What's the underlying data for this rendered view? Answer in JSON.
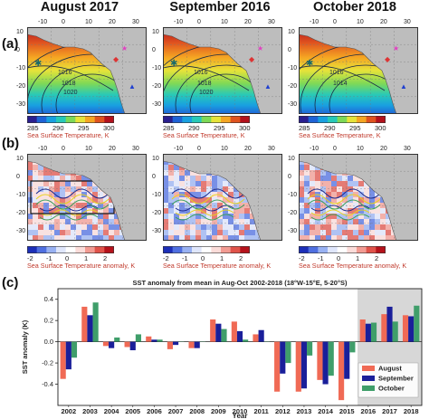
{
  "column_titles": [
    "August 2017",
    "September 2016",
    "October 2018"
  ],
  "panel_letters": {
    "a": "(a)",
    "b": "(b)",
    "c": "(c)"
  },
  "map_lon_ticks": [
    "-10",
    "0",
    "10",
    "20",
    "30"
  ],
  "map_lat_ticks": [
    "10",
    "0",
    "-10",
    "-20",
    "-30"
  ],
  "isobar_labels": {
    "aug": [
      "1016",
      "1018",
      "1020"
    ],
    "sep": [
      "1016",
      "1018",
      "1020"
    ],
    "oct": [
      "1016",
      "1014"
    ]
  },
  "colorbar_a": {
    "label": "Sea Surface Temperature, K",
    "ticks": [
      "285",
      "290",
      "295",
      "300"
    ],
    "colors": [
      "#2a1f8f",
      "#1f63d6",
      "#19a0e0",
      "#28c9b8",
      "#7ed957",
      "#e6e33a",
      "#f5a623",
      "#e0531f",
      "#b3111c"
    ]
  },
  "colorbar_b": {
    "label": "Sea Surface Temperature anomaly, K",
    "ticks": [
      "-2",
      "-1",
      "0",
      "1",
      "2"
    ],
    "colors": [
      "#1c2fb8",
      "#4f6fe0",
      "#98b1f2",
      "#dfe6fb",
      "#ffffff",
      "#fbdcd9",
      "#f29b92",
      "#e0534a",
      "#b5121b"
    ]
  },
  "chart_data": {
    "type": "bar",
    "title": "SST anomaly from mean in Aug-Oct 2002-2018 (18°W-15°E, 5-20°S)",
    "xlabel": "Year",
    "ylabel": "SST anomaly (K)",
    "ylim": [
      -0.6,
      0.5
    ],
    "yticks": [
      -0.4,
      -0.2,
      0.0,
      0.2,
      0.4
    ],
    "categories": [
      "2002",
      "2003",
      "2004",
      "2005",
      "2006",
      "2007",
      "2008",
      "2009",
      "2010",
      "2011",
      "2012",
      "2013",
      "2014",
      "2015",
      "2016",
      "2017",
      "2018"
    ],
    "highlight_range": [
      "2016",
      "2018"
    ],
    "legend_position": "bottom-right",
    "grid": false,
    "series": [
      {
        "name": "August",
        "color": "#f06a55",
        "values": [
          -0.35,
          0.33,
          -0.04,
          -0.05,
          0.05,
          -0.07,
          -0.06,
          0.21,
          0.19,
          0.07,
          -0.47,
          -0.47,
          -0.36,
          -0.55,
          0.21,
          0.26,
          0.25
        ]
      },
      {
        "name": "September",
        "color": "#1a1f9a",
        "values": [
          -0.26,
          0.25,
          -0.06,
          -0.08,
          0.02,
          -0.03,
          -0.06,
          0.17,
          0.1,
          0.11,
          -0.3,
          -0.44,
          -0.4,
          -0.35,
          0.17,
          0.33,
          0.24
        ]
      },
      {
        "name": "October",
        "color": "#3f9e6a",
        "values": [
          -0.15,
          0.37,
          0.04,
          0.07,
          0.02,
          0.0,
          0.0,
          0.12,
          0.02,
          0.0,
          -0.2,
          -0.13,
          -0.32,
          -0.1,
          0.18,
          0.19,
          0.34
        ]
      }
    ]
  }
}
